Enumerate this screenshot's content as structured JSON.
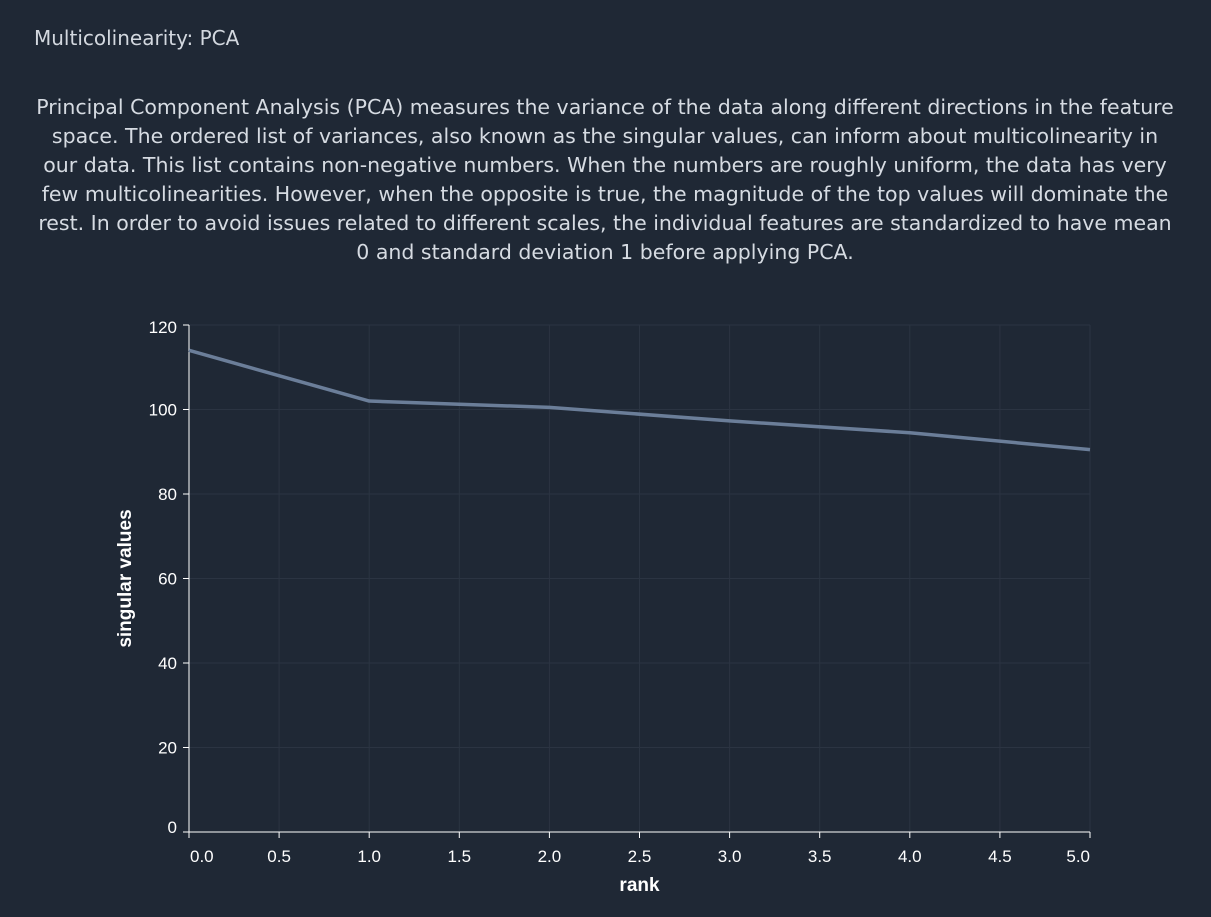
{
  "page": {
    "title": "Multicolinearity: PCA",
    "description": "Principal Component Analysis (PCA) measures the variance of the data along different directions in the feature space. The ordered list of variances, also known as the singular values, can inform about multicolinearity in our data. This list contains non-negative numbers. When the numbers are roughly uniform, the data has very few multicolinearities. However, when the opposite is true, the magnitude of the top values will dominate the rest. In order to avoid issues related to different scales, the individual features are standardized to have mean 0 and standard deviation 1 before applying PCA."
  },
  "colors": {
    "background": "#1f2835",
    "line": "#6b7e99",
    "grid": "#2b3442",
    "axis": "#ffffff"
  },
  "chart_data": {
    "type": "line",
    "title": "",
    "xlabel": "rank",
    "ylabel": "singular values",
    "x": [
      0,
      1,
      2,
      3,
      4,
      5
    ],
    "series": [
      {
        "values": [
          114,
          102,
          100.5,
          97.3,
          94.5,
          90.5
        ]
      }
    ],
    "xlim": [
      0,
      5
    ],
    "ylim": [
      0,
      120
    ],
    "xticks": [
      0.0,
      0.5,
      1.0,
      1.5,
      2.0,
      2.5,
      3.0,
      3.5,
      4.0,
      4.5,
      5.0
    ],
    "xtick_labels": [
      "0.0",
      "0.5",
      "1.0",
      "1.5",
      "2.0",
      "2.5",
      "3.0",
      "3.5",
      "4.0",
      "4.5",
      "5.0"
    ],
    "yticks": [
      0,
      20,
      40,
      60,
      80,
      100,
      120
    ],
    "ytick_labels": [
      "0",
      "20",
      "40",
      "60",
      "80",
      "100",
      "120"
    ],
    "grid": true,
    "legend": "none"
  }
}
